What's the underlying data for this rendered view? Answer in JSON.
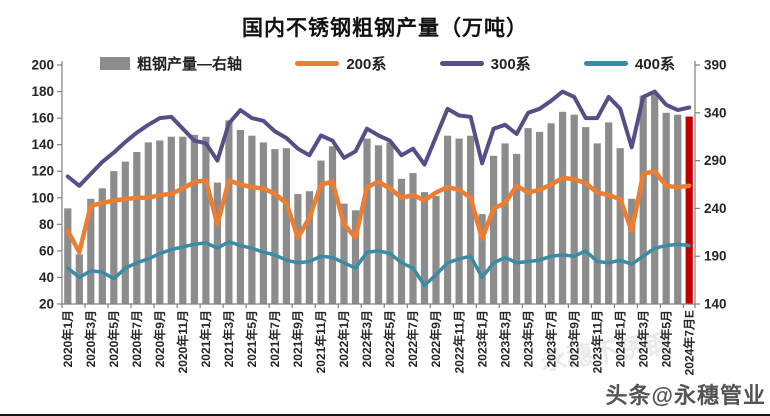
{
  "title": "国内不锈钢粗钢产量（万吨）",
  "watermark": "头条@永穗管业",
  "bg_watermark": "永穗不锈钢",
  "colors": {
    "bar": "#8c8c8c",
    "bar_highlight": "#c00000",
    "s200": "#ed7d31",
    "s300": "#564f87",
    "s400": "#3a8ca4",
    "axis": "#808080",
    "tick_text": "#262626"
  },
  "legend": [
    {
      "label": "粗钢产量—右轴",
      "type": "bar",
      "color": "#8c8c8c"
    },
    {
      "label": "200系",
      "type": "line",
      "color": "#ed7d31"
    },
    {
      "label": "300系",
      "type": "line",
      "color": "#564f87"
    },
    {
      "label": "400系",
      "type": "line",
      "color": "#3a8ca4"
    }
  ],
  "chart_data": {
    "type": "bar",
    "title": "国内不锈钢粗钢产量（万吨）",
    "months_count": 55,
    "x_tick_labels": [
      "2020年1月",
      "2020年3月",
      "2020年5月",
      "2020年7月",
      "2020年9月",
      "2020年11月",
      "2021年1月",
      "2021年3月",
      "2021年5月",
      "2021年7月",
      "2021年9月",
      "2021年11月",
      "2022年1月",
      "2022年3月",
      "2022年5月",
      "2022年7月",
      "2022年9月",
      "2022年11月",
      "2023年1月",
      "2023年3月",
      "2023年5月",
      "2023年7月",
      "2023年9月",
      "2023年11月",
      "2024年1月",
      "2024年3月",
      "2024年5月",
      "2024年7月E"
    ],
    "label_every_n_months": 2,
    "left_axis": {
      "min": 20,
      "max": 200,
      "ticks": [
        200,
        180,
        160,
        140,
        120,
        100,
        80,
        60,
        40,
        20
      ]
    },
    "right_axis": {
      "min": 140,
      "max": 390,
      "ticks": [
        390,
        340,
        290,
        240,
        190,
        140
      ]
    },
    "grid": false,
    "legend_position": "top",
    "bars": {
      "name": "粗钢产量—右轴",
      "axis": "right",
      "highlight_last_index": 54,
      "values": [
        240,
        192,
        250,
        261,
        279,
        289,
        299,
        309,
        311,
        315,
        315,
        317,
        315,
        267,
        332,
        322,
        316,
        309,
        302,
        303,
        255,
        258,
        290,
        305,
        245,
        238,
        313,
        306,
        309,
        271,
        277,
        257,
        253,
        316,
        313,
        316,
        234,
        295,
        308,
        297,
        324,
        320,
        329,
        341,
        338,
        325,
        308,
        330,
        303,
        250,
        358,
        360,
        340,
        338,
        336
      ]
    },
    "series": [
      {
        "name": "200系",
        "axis": "left",
        "values": [
          75,
          59,
          94,
          96,
          98,
          99,
          100,
          100,
          102,
          103,
          107,
          112,
          113,
          80,
          113,
          110,
          108,
          107,
          103,
          96,
          70,
          85,
          110,
          112,
          80,
          70,
          108,
          112,
          107,
          100,
          102,
          98,
          104,
          108,
          106,
          100,
          69,
          92,
          96,
          109,
          104,
          106,
          110,
          115,
          114,
          111,
          104,
          102,
          99,
          75,
          118,
          120,
          109,
          108,
          109
        ]
      },
      {
        "name": "300系",
        "axis": "left",
        "values": [
          116,
          109,
          118,
          127,
          134,
          142,
          149,
          155,
          160,
          161,
          152,
          143,
          141,
          128,
          156,
          166,
          160,
          158,
          150,
          145,
          137,
          132,
          147,
          143,
          130,
          135,
          152,
          147,
          143,
          132,
          137,
          125,
          146,
          167,
          162,
          161,
          126,
          152,
          155,
          148,
          164,
          167,
          173,
          180,
          176,
          160,
          160,
          176,
          167,
          138,
          176,
          180,
          170,
          166,
          168
        ]
      },
      {
        "name": "400系",
        "axis": "left",
        "values": [
          47,
          40,
          45,
          44,
          39,
          47,
          51,
          54,
          58,
          61,
          63,
          65,
          66,
          62,
          67,
          64,
          62,
          59,
          57,
          53,
          51,
          52,
          56,
          55,
          51,
          47,
          59,
          60,
          58,
          51,
          47,
          34,
          42,
          51,
          54,
          56,
          40,
          51,
          55,
          51,
          52,
          53,
          56,
          57,
          56,
          60,
          52,
          51,
          53,
          50,
          56,
          62,
          64,
          65,
          64
        ]
      }
    ]
  }
}
